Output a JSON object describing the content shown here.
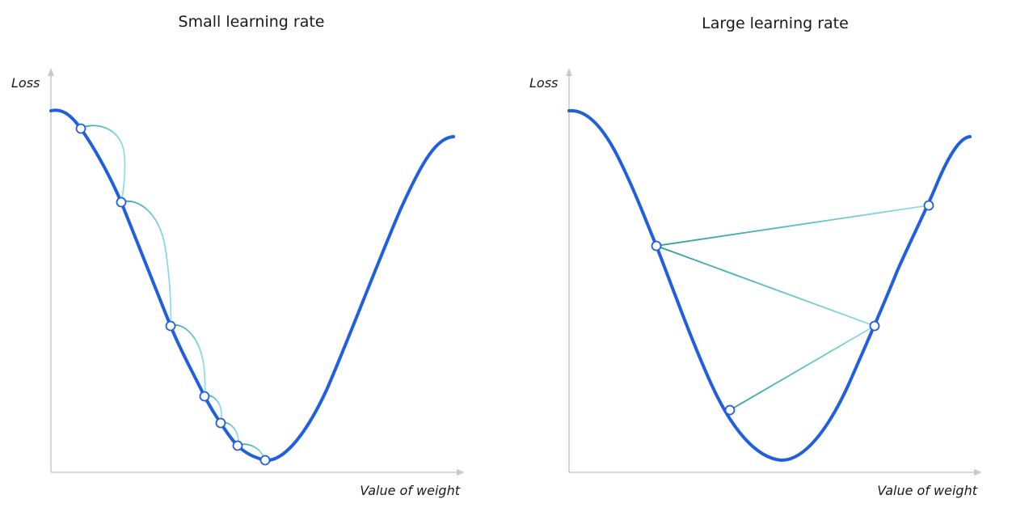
{
  "panels": [
    {
      "title": "Small learning rate",
      "ylabel": "Loss",
      "xlabel": "Value of weight",
      "step_count": 6
    },
    {
      "title": "Large learning rate",
      "ylabel": "Loss",
      "xlabel": "Value of weight",
      "step_count": 3
    }
  ],
  "colors": {
    "curve": "#1f5fe0",
    "step_dark": "#2a9a9a",
    "step_light": "#8fe0e8",
    "axis": "#c9c9c9",
    "point_fill": "#ffffff"
  }
}
